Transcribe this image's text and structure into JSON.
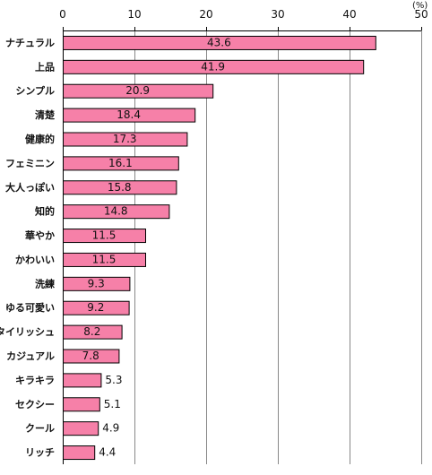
{
  "chart_data": {
    "type": "bar",
    "orientation": "horizontal",
    "unit": "(%)",
    "categories": [
      "ナチュラル",
      "上品",
      "シンプル",
      "清楚",
      "健康的",
      "フェミニン",
      "大人っぽい",
      "知的",
      "華やか",
      "かわいい",
      "洗練",
      "ゆる可愛い",
      "スタイリッシュ",
      "カジュアル",
      "キラキラ",
      "セクシー",
      "クール",
      "リッチ"
    ],
    "values": [
      43.6,
      41.9,
      20.9,
      18.4,
      17.3,
      16.1,
      15.8,
      14.8,
      11.5,
      11.5,
      9.3,
      9.2,
      8.2,
      7.8,
      5.3,
      5.1,
      4.9,
      4.4
    ],
    "value_labels": [
      "43.6",
      "41.9",
      "20.9",
      "18.4",
      "17.3",
      "16.1",
      "15.8",
      "14.8",
      "11.5",
      "11.5",
      "9.3",
      "9.2",
      "8.2",
      "7.8",
      "5.3",
      "5.1",
      "4.9",
      "4.4"
    ],
    "x_ticks": [
      "0",
      "10",
      "20",
      "30",
      "40",
      "50"
    ],
    "xlim": [
      0,
      50
    ],
    "grid": true,
    "axis_position": "top",
    "bar_color": "#F680A8",
    "bar_edge_color": "#000000"
  }
}
